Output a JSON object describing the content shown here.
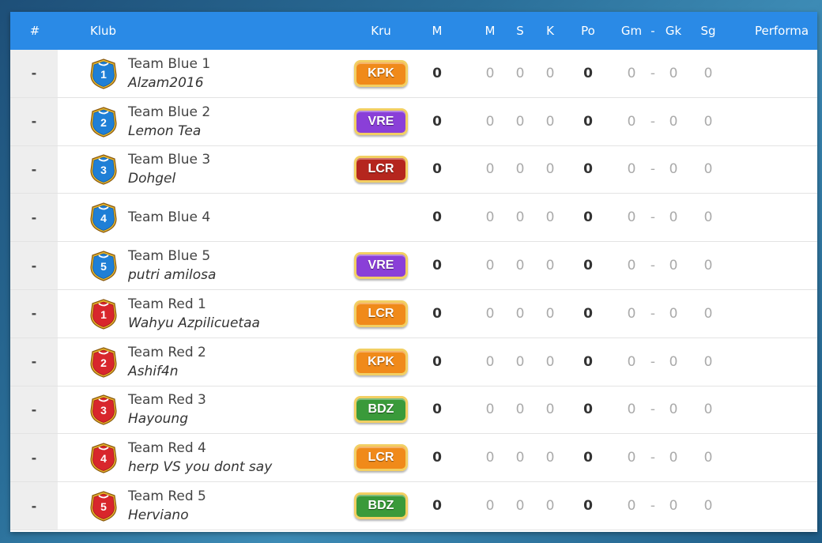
{
  "header": {
    "rank": "#",
    "club": "Klub",
    "crew": "Kru",
    "played": "M",
    "won": "M",
    "draw": "S",
    "lost": "K",
    "points": "Po",
    "goals_for": "Gm",
    "sep": "-",
    "goals_against": "Gk",
    "goal_diff": "Sg",
    "performance": "Performa"
  },
  "colors": {
    "header_bg": "#2a8ae6",
    "blue_jersey": "#1f7fd6",
    "red_jersey": "#d8262c",
    "crew_KPK": "#f08a1a",
    "crew_VRE": "#8a3fd8",
    "crew_LCR_dark": "#b5261e",
    "crew_LCR": "#f08a1a",
    "crew_BDZ": "#3a9a3a"
  },
  "rows": [
    {
      "rank": "-",
      "jersey_color": "blue",
      "jersey_number": "1",
      "team": "Team Blue 1",
      "manager": "Alzam2016",
      "crew": "KPK",
      "crew_color": "#f08a1a",
      "played": "0",
      "won": "0",
      "draw": "0",
      "lost": "0",
      "points": "0",
      "gf": "0",
      "sep": "-",
      "ga": "0",
      "gd": "0"
    },
    {
      "rank": "-",
      "jersey_color": "blue",
      "jersey_number": "2",
      "team": "Team Blue 2",
      "manager": "Lemon Tea",
      "crew": "VRE",
      "crew_color": "#8a3fd8",
      "played": "0",
      "won": "0",
      "draw": "0",
      "lost": "0",
      "points": "0",
      "gf": "0",
      "sep": "-",
      "ga": "0",
      "gd": "0"
    },
    {
      "rank": "-",
      "jersey_color": "blue",
      "jersey_number": "3",
      "team": "Team Blue 3",
      "manager": "Dohgel",
      "crew": "LCR",
      "crew_color": "#b5261e",
      "played": "0",
      "won": "0",
      "draw": "0",
      "lost": "0",
      "points": "0",
      "gf": "0",
      "sep": "-",
      "ga": "0",
      "gd": "0"
    },
    {
      "rank": "-",
      "jersey_color": "blue",
      "jersey_number": "4",
      "team": "Team Blue 4",
      "manager": "",
      "crew": "",
      "crew_color": "",
      "played": "0",
      "won": "0",
      "draw": "0",
      "lost": "0",
      "points": "0",
      "gf": "0",
      "sep": "-",
      "ga": "0",
      "gd": "0"
    },
    {
      "rank": "-",
      "jersey_color": "blue",
      "jersey_number": "5",
      "team": "Team Blue 5",
      "manager": "putri amilosa",
      "crew": "VRE",
      "crew_color": "#8a3fd8",
      "played": "0",
      "won": "0",
      "draw": "0",
      "lost": "0",
      "points": "0",
      "gf": "0",
      "sep": "-",
      "ga": "0",
      "gd": "0"
    },
    {
      "rank": "-",
      "jersey_color": "red",
      "jersey_number": "1",
      "team": "Team Red 1",
      "manager": "Wahyu Azpilicuetaa",
      "crew": "LCR",
      "crew_color": "#f08a1a",
      "played": "0",
      "won": "0",
      "draw": "0",
      "lost": "0",
      "points": "0",
      "gf": "0",
      "sep": "-",
      "ga": "0",
      "gd": "0"
    },
    {
      "rank": "-",
      "jersey_color": "red",
      "jersey_number": "2",
      "team": "Team Red 2",
      "manager": "Ashif4n",
      "crew": "KPK",
      "crew_color": "#f08a1a",
      "played": "0",
      "won": "0",
      "draw": "0",
      "lost": "0",
      "points": "0",
      "gf": "0",
      "sep": "-",
      "ga": "0",
      "gd": "0"
    },
    {
      "rank": "-",
      "jersey_color": "red",
      "jersey_number": "3",
      "team": "Team Red 3",
      "manager": "Hayoung",
      "crew": "BDZ",
      "crew_color": "#3a9a3a",
      "played": "0",
      "won": "0",
      "draw": "0",
      "lost": "0",
      "points": "0",
      "gf": "0",
      "sep": "-",
      "ga": "0",
      "gd": "0"
    },
    {
      "rank": "-",
      "jersey_color": "red",
      "jersey_number": "4",
      "team": "Team Red 4",
      "manager": "herp VS you dont say",
      "crew": "LCR",
      "crew_color": "#f08a1a",
      "played": "0",
      "won": "0",
      "draw": "0",
      "lost": "0",
      "points": "0",
      "gf": "0",
      "sep": "-",
      "ga": "0",
      "gd": "0"
    },
    {
      "rank": "-",
      "jersey_color": "red",
      "jersey_number": "5",
      "team": "Team Red 5",
      "manager": "Herviano",
      "crew": "BDZ",
      "crew_color": "#3a9a3a",
      "played": "0",
      "won": "0",
      "draw": "0",
      "lost": "0",
      "points": "0",
      "gf": "0",
      "sep": "-",
      "ga": "0",
      "gd": "0"
    }
  ]
}
